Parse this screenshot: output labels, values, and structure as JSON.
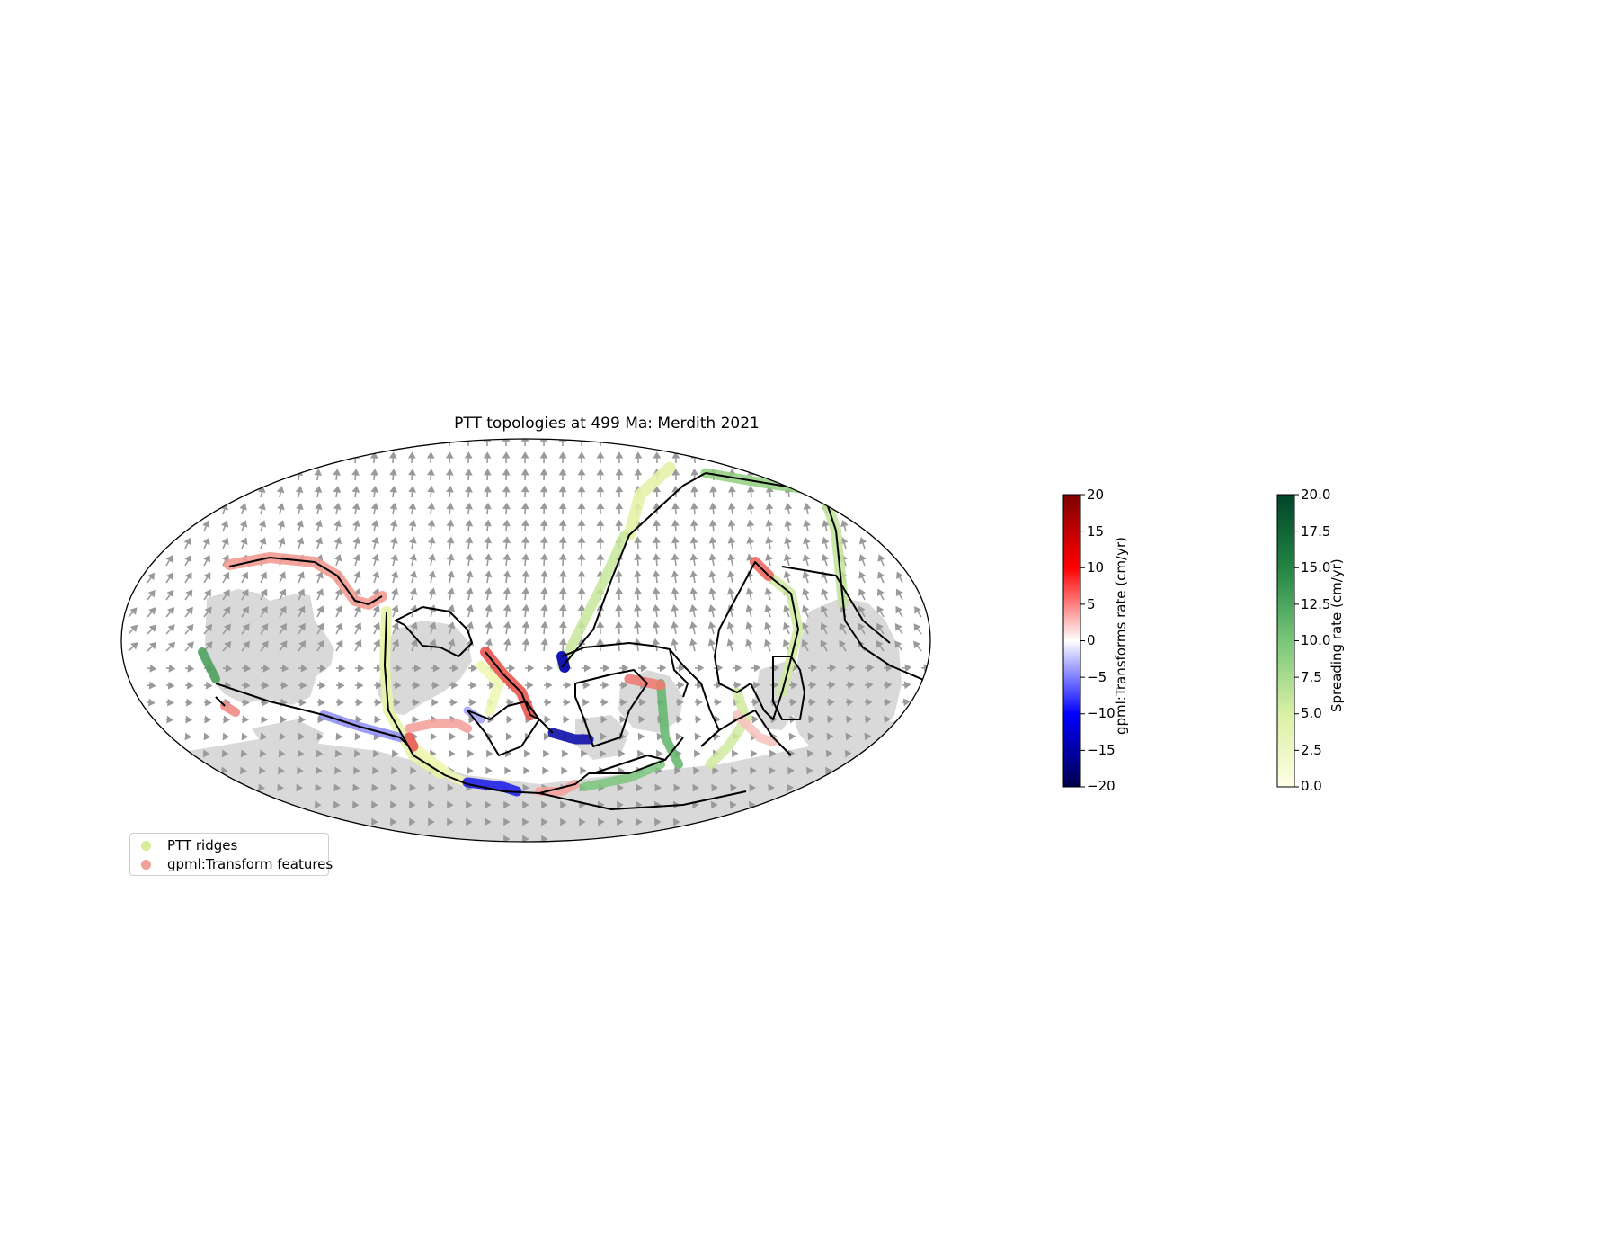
{
  "title": "PTT topologies at 499 Ma: Merdith 2021",
  "colorbars": [
    {
      "label": "gpml:Transforms rate (cm/yr)",
      "ticks": [
        "20",
        "15",
        "10",
        "5",
        "0",
        "−5",
        "−10",
        "−15",
        "−20"
      ],
      "colormap": "seismic",
      "range": [
        -20,
        20
      ]
    },
    {
      "label": "Spreading rate (cm/yr)",
      "ticks": [
        "20.0",
        "17.5",
        "15.0",
        "12.5",
        "10.0",
        "7.5",
        "5.0",
        "2.5",
        "0.0"
      ],
      "colormap": "YlGn",
      "range": [
        0,
        20
      ]
    }
  ],
  "legend": {
    "items": [
      {
        "label": "PTT ridges",
        "color": "#d4ee9a"
      },
      {
        "label": "gpml:Transform features",
        "color": "#f2a09a"
      }
    ]
  },
  "map": {
    "projection": "Mollweide",
    "land_color": "#d9d9d9",
    "plate_boundary_color": "#000000",
    "velocity_arrow_color": "#9a9a9a"
  }
}
